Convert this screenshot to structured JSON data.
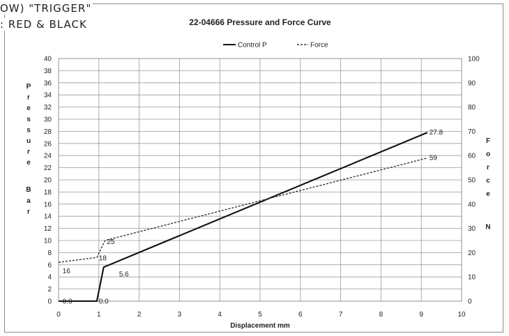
{
  "overlay_text": [
    "OW) \"TRIGGER\"",
    ": RED & BLACK"
  ],
  "chart_data": {
    "type": "line",
    "title": "22-04666 Pressure and Force Curve",
    "xlabel": "Displacement mm",
    "ylabel_left": "Pressure Bar",
    "ylabel_right": "Force N",
    "xlim": [
      0,
      10
    ],
    "ylim_left": [
      0,
      40
    ],
    "ylim_right": [
      0,
      100
    ],
    "x_ticks": [
      "0",
      "1",
      "2",
      "3",
      "4",
      "5",
      "6",
      "7",
      "8",
      "9",
      "10"
    ],
    "y_left_ticks": [
      "0",
      "2",
      "4",
      "6",
      "8",
      "10",
      "12",
      "14",
      "16",
      "18",
      "20",
      "22",
      "24",
      "26",
      "28",
      "30",
      "32",
      "34",
      "36",
      "38",
      "40"
    ],
    "y_right_ticks": [
      "0",
      "10",
      "20",
      "30",
      "40",
      "50",
      "60",
      "70",
      "80",
      "90",
      "100"
    ],
    "grid": true,
    "legend_position": "top-center",
    "series": [
      {
        "name": "Control P",
        "axis": "left",
        "style": "solid",
        "color": "#111111",
        "x": [
          0,
          0.95,
          1.12,
          9.15
        ],
        "y": [
          0,
          0,
          5.6,
          27.8
        ]
      },
      {
        "name": "Force",
        "axis": "right",
        "style": "dashed",
        "color": "#333333",
        "x": [
          0,
          0.95,
          1.15,
          9.15
        ],
        "y": [
          16,
          18,
          25,
          59
        ]
      }
    ],
    "data_labels": [
      {
        "text": "0.0",
        "x": 0.1,
        "y": 0,
        "axis": "left"
      },
      {
        "text": "0.0",
        "x": 1.0,
        "y": 0,
        "axis": "left"
      },
      {
        "text": "5.6",
        "x": 1.5,
        "y": 4.5,
        "axis": "left"
      },
      {
        "text": "27.8",
        "x": 9.2,
        "y": 27.9,
        "axis": "left"
      },
      {
        "text": "16",
        "x": 0.1,
        "y": 12.5,
        "axis": "right"
      },
      {
        "text": "18",
        "x": 1.0,
        "y": 17.8,
        "axis": "right"
      },
      {
        "text": "25",
        "x": 1.2,
        "y": 24.5,
        "axis": "right"
      },
      {
        "text": "59",
        "x": 9.2,
        "y": 59.2,
        "axis": "right"
      }
    ]
  }
}
